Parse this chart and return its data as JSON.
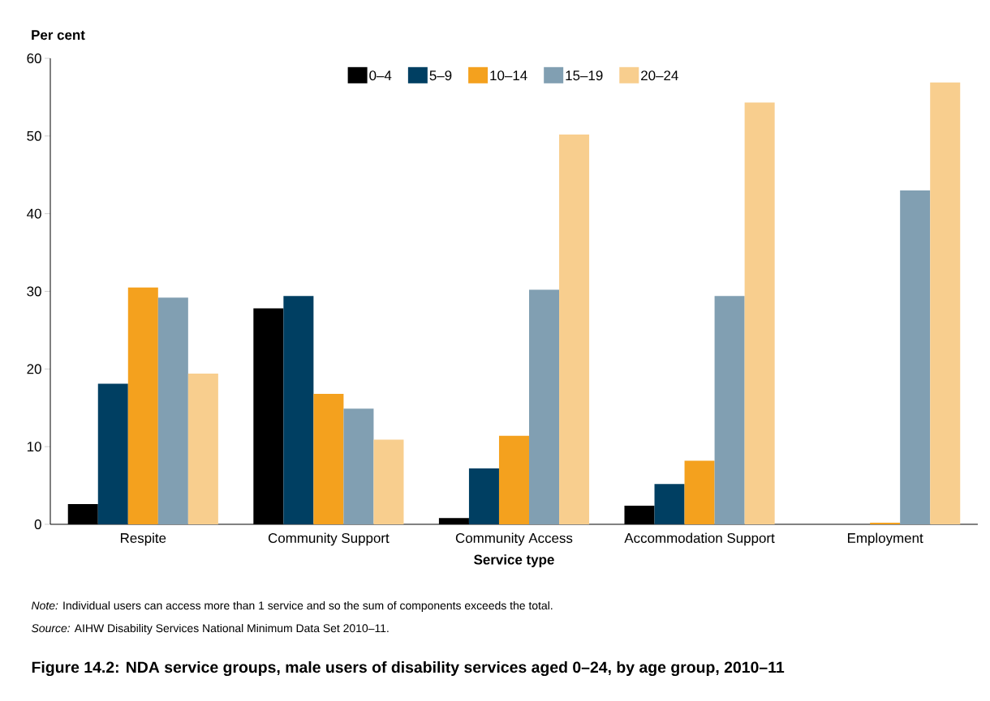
{
  "chart_data": {
    "type": "bar",
    "title": "Figure 14.2: NDA service groups, male users of disability services aged 0–24, by age group, 2010–11",
    "xlabel": "Service type",
    "ylabel": "Per cent",
    "categories": [
      "Respite",
      "Community Support",
      "Community Access",
      "Accommodation Support",
      "Employment"
    ],
    "series": [
      {
        "name": "0–4",
        "color": "#000000",
        "values": [
          2.6,
          27.8,
          0.8,
          2.4,
          0
        ]
      },
      {
        "name": "5–9",
        "color": "#003f62",
        "values": [
          18.1,
          29.4,
          7.2,
          5.2,
          0
        ]
      },
      {
        "name": "10–14",
        "color": "#f4a11e",
        "values": [
          30.5,
          16.8,
          11.4,
          8.2,
          0.2
        ]
      },
      {
        "name": "15–19",
        "color": "#819fb2",
        "values": [
          29.2,
          14.9,
          30.2,
          29.4,
          43.0
        ]
      },
      {
        "name": "20–24",
        "color": "#f8ce8e",
        "values": [
          19.4,
          10.9,
          50.2,
          54.3,
          56.9
        ]
      }
    ],
    "ylim": [
      0,
      60
    ],
    "yticks": [
      0,
      10,
      20,
      30,
      40,
      50,
      60
    ],
    "legend": "top",
    "annotations": [
      "*Note:* Individual users can access more than 1 service and so the sum of components exceeds the total.",
      "*Source:* AIHW Disability Services National Minimum Data Set 2010–11."
    ]
  }
}
